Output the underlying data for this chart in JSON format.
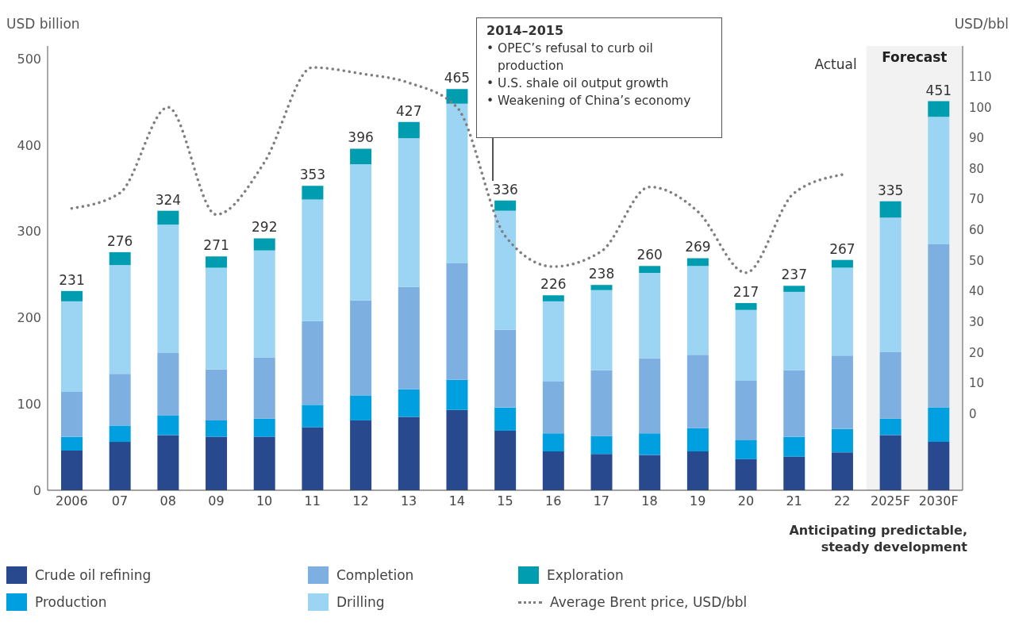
{
  "chart_data": {
    "type": "bar",
    "stacked": true,
    "ylabel": "USD billion",
    "y2label": "USD/bbl",
    "categories": [
      "2006",
      "07",
      "08",
      "09",
      "10",
      "11",
      "12",
      "13",
      "14",
      "15",
      "16",
      "17",
      "18",
      "19",
      "20",
      "21",
      "22",
      "2025F",
      "2030F"
    ],
    "series": [
      {
        "name": "Crude oil refining",
        "color": "#28498e",
        "values": [
          46,
          56,
          64,
          62,
          62,
          73,
          81,
          85,
          93,
          69,
          45,
          42,
          41,
          45,
          36,
          39,
          44,
          64,
          56
        ]
      },
      {
        "name": "Production",
        "color": "#009fe0",
        "values": [
          16,
          19,
          23,
          19,
          21,
          26,
          29,
          32,
          35,
          27,
          21,
          21,
          25,
          27,
          22,
          23,
          27,
          19,
          40
        ]
      },
      {
        "name": "Completion",
        "color": "#7db0e0",
        "values": [
          52,
          60,
          72,
          59,
          71,
          97,
          110,
          119,
          135,
          90,
          60,
          76,
          87,
          85,
          69,
          77,
          85,
          77,
          189
        ]
      },
      {
        "name": "Drilling",
        "color": "#9bd5f3",
        "values": [
          105,
          126,
          149,
          118,
          124,
          141,
          158,
          172,
          185,
          138,
          93,
          93,
          99,
          103,
          82,
          91,
          102,
          156,
          148
        ]
      },
      {
        "name": "Exploration",
        "color": "#009caf",
        "values": [
          12,
          15,
          16,
          13,
          14,
          16,
          18,
          19,
          17,
          12,
          7,
          6,
          8,
          9,
          8,
          7,
          9,
          19,
          18
        ]
      },
      {
        "name": "Average Brent price, USD/bbl",
        "type": "line",
        "axis": "y2",
        "line_style": "dotted",
        "color": "#7f7f7f",
        "values": [
          67,
          72,
          100,
          65,
          82,
          113,
          111,
          108,
          100,
          58,
          48,
          53,
          74,
          66,
          46,
          72,
          78,
          null,
          null
        ]
      }
    ],
    "totals": [
      "231",
      "276",
      "324",
      "271",
      "292",
      "353",
      "396",
      "427",
      "465",
      "336",
      "226",
      "238",
      "260",
      "269",
      "217",
      "237",
      "267",
      "335",
      "451"
    ],
    "ylim": [
      0,
      515
    ],
    "yticks": [
      0,
      100,
      200,
      300,
      400,
      500
    ],
    "y2lim": [
      -25,
      120
    ],
    "y2ticks": [
      0,
      10,
      20,
      30,
      40,
      50,
      60,
      70,
      80,
      90,
      100,
      110
    ],
    "bands": [
      {
        "axis": "x",
        "from": "2025F",
        "to": "2030F",
        "label": "Forecast",
        "color": "#f2f2f2"
      }
    ],
    "annotations": [
      "2014–2015",
      "• OPEC’s refusal to curb oil production",
      "• U.S. shale oil output growth",
      "• Weakening of China’s economy",
      "Actual",
      "Anticipating predictable, steady development"
    ],
    "legend": "bottom"
  }
}
